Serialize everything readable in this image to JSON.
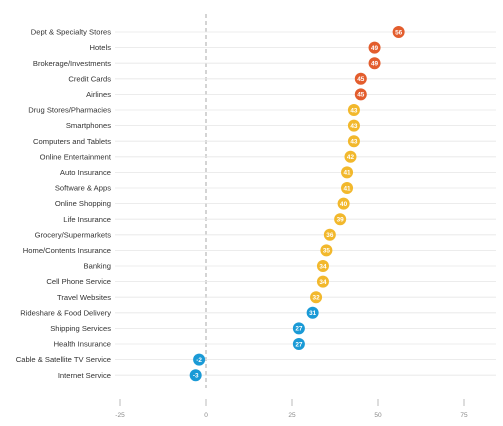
{
  "chart_data": {
    "type": "scatter",
    "title": "",
    "xlabel": "",
    "ylabel": "",
    "xlim": [
      -25,
      75
    ],
    "x_ticks": [
      -25,
      0,
      25,
      50,
      75
    ],
    "grid": true,
    "legend": "none",
    "categories": [
      "Dept & Specialty Stores",
      "Hotels",
      "Brokerage/Investments",
      "Credit Cards",
      "Airlines",
      "Drug Stores/Pharmacies",
      "Smartphones",
      "Computers and Tablets",
      "Online Entertainment",
      "Auto Insurance",
      "Software & Apps",
      "Online Shopping",
      "Life Insurance",
      "Grocery/Supermarkets",
      "Home/Contents Insurance",
      "Banking",
      "Cell Phone Service",
      "Travel Websites",
      "Rideshare & Food Delivery",
      "Shipping Services",
      "Health Insurance",
      "Cable & Satellite TV Service",
      "Internet Service"
    ],
    "values": [
      56,
      49,
      49,
      45,
      45,
      43,
      43,
      43,
      42,
      41,
      41,
      40,
      39,
      36,
      35,
      34,
      34,
      32,
      31,
      27,
      27,
      -2,
      -3
    ],
    "colors": {
      "high": "#e35d2d",
      "mid": "#f2b82c",
      "low": "#1a9ad6",
      "grid": "#e6e6e6",
      "zero_line": "#aaaaaa",
      "axis_text": "#888888",
      "label_text": "#333333"
    }
  }
}
